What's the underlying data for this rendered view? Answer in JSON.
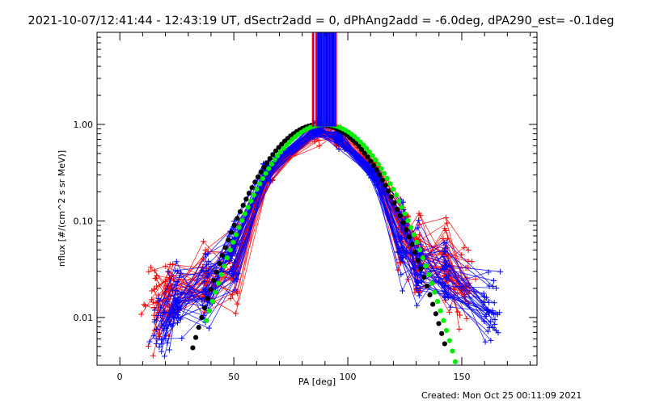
{
  "chart_data": {
    "type": "scatter",
    "title": "2021-10-07/12:41:44 - 12:43:19 UT, dSectr2add = 0, dPhAng2add = -6.0deg, dPA290_est= -0.1deg",
    "xlabel": "PA [deg]",
    "ylabel": "nflux [#/(cm^2 s sr MeV)]",
    "xlim": [
      -10,
      183
    ],
    "ylim": [
      0.0032,
      9
    ],
    "yscale": "log",
    "grid": false,
    "x_tick_labels": [
      "0",
      "50",
      "100",
      "150"
    ],
    "y_tick_labels": [
      "0.01",
      "0.10",
      "1.00"
    ],
    "footer": "Created: Mon Oct 25 00:11:09 2021",
    "colors": {
      "red": "#ff0000",
      "blue": "#0000ff",
      "black": "#000000",
      "green": "#00ee00"
    },
    "series": [
      {
        "color": "red",
        "style": "line+plus",
        "sample_pitch_angles": [
          15,
          22,
          38,
          50,
          65,
          86,
          96,
          112,
          124,
          131,
          143,
          152
        ],
        "sample_flux": [
          0.012,
          0.018,
          0.022,
          0.035,
          0.3,
          0.85,
          0.75,
          0.35,
          0.08,
          0.04,
          0.035,
          0.02
        ],
        "vertical_spikes_x": [
          84.5,
          86,
          87.5,
          92,
          93.5,
          95
        ]
      },
      {
        "color": "blue",
        "style": "line+plus",
        "sample_pitch_angles": [
          18,
          25,
          38,
          50,
          65,
          86,
          96,
          112,
          124,
          131,
          143,
          163
        ],
        "sample_flux": [
          0.008,
          0.015,
          0.02,
          0.045,
          0.35,
          0.88,
          0.72,
          0.3,
          0.06,
          0.035,
          0.025,
          0.012
        ],
        "vertical_spikes_x": [
          85,
          86.5,
          87,
          87.5,
          88,
          88.5,
          89,
          89.5,
          90,
          90.5,
          91,
          91.5,
          92,
          92.5,
          93,
          93.5,
          94,
          94.5
        ]
      },
      {
        "color": "black",
        "style": "dots",
        "model": "gaussian",
        "center": 87.5,
        "sigma": 17,
        "amplitude": 1.0,
        "x_range": [
          32,
          143
        ]
      },
      {
        "color": "green",
        "style": "dots",
        "model": "gaussian",
        "center": 90,
        "sigma": 17,
        "amplitude": 1.0,
        "x_range": [
          38,
          149
        ]
      }
    ]
  }
}
